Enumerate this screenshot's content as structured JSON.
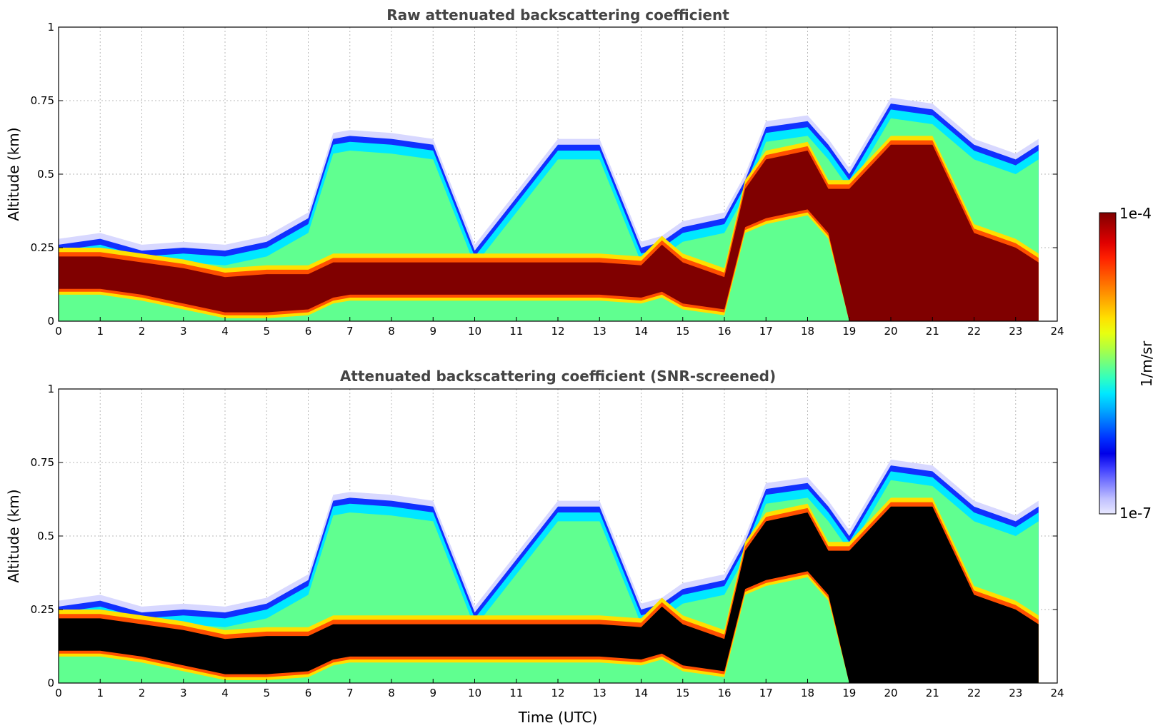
{
  "chart_data": [
    {
      "type": "heatmap",
      "title": "Raw attenuated backscattering coefficient",
      "xlabel": "",
      "ylabel": "Altitude (km)",
      "xlim": [
        0,
        24
      ],
      "ylim": [
        0,
        1
      ],
      "x_ticks": [
        "0",
        "1",
        "2",
        "3",
        "4",
        "5",
        "6",
        "7",
        "8",
        "9",
        "10",
        "11",
        "12",
        "13",
        "14",
        "15",
        "16",
        "17",
        "18",
        "19",
        "20",
        "21",
        "22",
        "23",
        "24"
      ],
      "y_ticks": [
        "0",
        "0.25",
        "0.5",
        "0.75",
        "1"
      ],
      "grid": true,
      "saturated_color": "#800000",
      "layers": {
        "x": [
          0,
          1,
          2,
          3,
          4,
          5,
          6,
          6.6,
          7,
          8,
          9,
          10,
          11,
          12,
          13,
          14,
          14.5,
          15,
          16,
          16.5,
          17,
          18,
          18.5,
          19,
          20,
          21,
          22,
          23,
          23.55
        ],
        "boundary_top": [
          0.26,
          0.28,
          0.24,
          0.25,
          0.24,
          0.27,
          0.35,
          0.62,
          0.63,
          0.62,
          0.6,
          0.24,
          0.42,
          0.6,
          0.6,
          0.25,
          0.27,
          0.32,
          0.35,
          0.48,
          0.66,
          0.68,
          0.6,
          0.5,
          0.74,
          0.72,
          0.6,
          0.55,
          0.6
        ],
        "dense_top": [
          0.22,
          0.22,
          0.2,
          0.18,
          0.15,
          0.16,
          0.16,
          0.2,
          0.2,
          0.2,
          0.2,
          0.2,
          0.2,
          0.2,
          0.2,
          0.19,
          0.26,
          0.2,
          0.15,
          0.45,
          0.55,
          0.58,
          0.45,
          0.45,
          0.6,
          0.6,
          0.3,
          0.25,
          0.2
        ],
        "dense_bottom": [
          0.11,
          0.11,
          0.09,
          0.06,
          0.03,
          0.03,
          0.04,
          0.08,
          0.09,
          0.09,
          0.09,
          0.09,
          0.09,
          0.09,
          0.09,
          0.08,
          0.1,
          0.06,
          0.04,
          0.32,
          0.35,
          0.38,
          0.3,
          0.0,
          0.0,
          0.0,
          0.0,
          0.0,
          0.0
        ]
      }
    },
    {
      "type": "heatmap",
      "title": "Attenuated backscattering coefficient (SNR-screened)",
      "xlabel": "Time (UTC)",
      "ylabel": "Altitude (km)",
      "xlim": [
        0,
        24
      ],
      "ylim": [
        0,
        1
      ],
      "x_ticks": [
        "0",
        "1",
        "2",
        "3",
        "4",
        "5",
        "6",
        "7",
        "8",
        "9",
        "10",
        "11",
        "12",
        "13",
        "14",
        "15",
        "16",
        "17",
        "18",
        "19",
        "20",
        "21",
        "22",
        "23",
        "24"
      ],
      "y_ticks": [
        "0",
        "0.25",
        "0.5",
        "0.75",
        "1"
      ],
      "grid": true,
      "saturated_color": "#000000",
      "layers": {
        "x": [
          0,
          1,
          2,
          3,
          4,
          5,
          6,
          6.6,
          7,
          8,
          9,
          10,
          11,
          12,
          13,
          14,
          14.5,
          15,
          16,
          16.5,
          17,
          18,
          18.5,
          19,
          20,
          21,
          22,
          23,
          23.55
        ],
        "boundary_top": [
          0.26,
          0.28,
          0.24,
          0.25,
          0.24,
          0.27,
          0.35,
          0.62,
          0.63,
          0.62,
          0.6,
          0.24,
          0.42,
          0.6,
          0.6,
          0.25,
          0.27,
          0.32,
          0.35,
          0.48,
          0.66,
          0.68,
          0.6,
          0.5,
          0.74,
          0.72,
          0.6,
          0.55,
          0.6
        ],
        "dense_top": [
          0.22,
          0.22,
          0.2,
          0.18,
          0.15,
          0.16,
          0.16,
          0.2,
          0.2,
          0.2,
          0.2,
          0.2,
          0.2,
          0.2,
          0.2,
          0.19,
          0.26,
          0.2,
          0.15,
          0.45,
          0.55,
          0.58,
          0.45,
          0.45,
          0.6,
          0.6,
          0.3,
          0.25,
          0.2
        ],
        "dense_bottom": [
          0.11,
          0.11,
          0.09,
          0.06,
          0.03,
          0.03,
          0.04,
          0.08,
          0.09,
          0.09,
          0.09,
          0.09,
          0.09,
          0.09,
          0.09,
          0.08,
          0.1,
          0.06,
          0.04,
          0.32,
          0.35,
          0.38,
          0.3,
          0.0,
          0.0,
          0.0,
          0.0,
          0.0,
          0.0
        ]
      }
    }
  ],
  "colorbar": {
    "label": "1/m/sr",
    "max_label": "1e-4",
    "min_label": "1e-7",
    "colors": [
      "#800000",
      "#b00000",
      "#e00000",
      "#ff2000",
      "#ff5000",
      "#ff8000",
      "#ffb000",
      "#ffe000",
      "#e8ff10",
      "#b0ff40",
      "#70ff80",
      "#30ffc0",
      "#00e8ff",
      "#00b0ff",
      "#0070ff",
      "#0030ff",
      "#0000e8",
      "#4040ff",
      "#8080ff",
      "#c0c0ff",
      "#e8e8ff"
    ]
  }
}
